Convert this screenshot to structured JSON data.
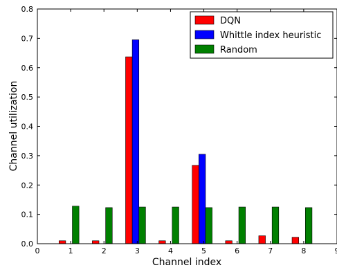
{
  "chart_data": {
    "type": "bar",
    "title": "",
    "xlabel": "Channel index",
    "ylabel": "Channel utilization",
    "xlim": [
      0,
      9
    ],
    "ylim": [
      0,
      0.8
    ],
    "x_ticks": [
      0,
      1,
      2,
      3,
      4,
      5,
      6,
      7,
      8,
      9
    ],
    "x_tick_labels": [
      "0",
      "1",
      "2",
      "3",
      "4",
      "5",
      "6",
      "7",
      "8",
      "9"
    ],
    "y_ticks": [
      0.0,
      0.1,
      0.2,
      0.3,
      0.4,
      0.5,
      0.6,
      0.7,
      0.8
    ],
    "y_tick_labels": [
      "0.0",
      "0.1",
      "0.2",
      "0.3",
      "0.4",
      "0.5",
      "0.6",
      "0.7",
      "0.8"
    ],
    "categories": [
      1,
      2,
      3,
      4,
      5,
      6,
      7,
      8
    ],
    "grid": false,
    "legend_position": "top-right",
    "series": [
      {
        "name": "DQN",
        "color": "#ff0000",
        "values": [
          0.01,
          0.01,
          0.637,
          0.01,
          0.267,
          0.01,
          0.027,
          0.022
        ]
      },
      {
        "name": "Whittle index heuristic",
        "color": "#0000ff",
        "values": [
          0.0,
          0.0,
          0.695,
          0.0,
          0.305,
          0.0,
          0.0,
          0.0
        ]
      },
      {
        "name": "Random",
        "color": "#008000",
        "values": [
          0.128,
          0.123,
          0.125,
          0.125,
          0.123,
          0.125,
          0.125,
          0.123
        ]
      }
    ]
  }
}
